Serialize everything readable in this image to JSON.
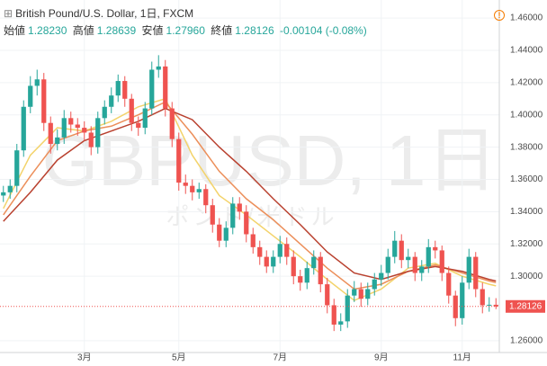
{
  "header": {
    "symbol": "British Pound/U.S. Dollar, 1日, FXCM",
    "ohlc": [
      {
        "label": "始値",
        "value": "1.28230"
      },
      {
        "label": "高値",
        "value": "1.28639"
      },
      {
        "label": "安値",
        "value": "1.27960"
      },
      {
        "label": "終値",
        "value": "1.28126"
      }
    ],
    "change": "-0.00104 (-0.08%)"
  },
  "chart_data": {
    "type": "candlestick",
    "watermark": "GBPUSD, 1日",
    "watermark_sub": "ポンド/米ドル",
    "categories": [
      null,
      null,
      null,
      null,
      null,
      null,
      null,
      null,
      null,
      null,
      null,
      null,
      "3月",
      null,
      null,
      null,
      null,
      null,
      null,
      null,
      null,
      null,
      null,
      null,
      null,
      null,
      "5月",
      null,
      null,
      null,
      null,
      null,
      null,
      null,
      null,
      null,
      null,
      null,
      null,
      null,
      null,
      "7月",
      null,
      null,
      null,
      null,
      null,
      null,
      null,
      null,
      null,
      null,
      null,
      null,
      null,
      null,
      "9月",
      null,
      null,
      null,
      null,
      null,
      null,
      null,
      null,
      null,
      null,
      null,
      "11月",
      null,
      null,
      null,
      null,
      null
    ],
    "open": [
      1.35,
      1.352,
      1.356,
      1.378,
      1.405,
      1.418,
      1.422,
      1.395,
      1.382,
      1.386,
      1.398,
      1.394,
      1.392,
      1.389,
      1.38,
      1.398,
      1.405,
      1.412,
      1.421,
      1.41,
      1.395,
      1.392,
      1.404,
      1.428,
      1.43,
      1.404,
      1.385,
      1.358,
      1.356,
      1.352,
      1.354,
      1.344,
      1.332,
      1.322,
      1.33,
      1.345,
      1.34,
      1.326,
      1.318,
      1.312,
      1.306,
      1.312,
      1.32,
      1.312,
      1.3,
      1.296,
      1.305,
      1.312,
      1.295,
      1.282,
      1.27,
      1.272,
      1.288,
      1.292,
      1.286,
      1.292,
      1.298,
      1.302,
      1.312,
      1.322,
      1.31,
      1.312,
      1.302,
      1.306,
      1.318,
      1.316,
      1.302,
      1.288,
      1.274,
      1.296,
      1.312,
      1.292,
      1.282,
      1.2823
    ],
    "high": [
      1.356,
      1.36,
      1.382,
      1.409,
      1.424,
      1.428,
      1.426,
      1.399,
      1.391,
      1.403,
      1.402,
      1.398,
      1.396,
      1.393,
      1.402,
      1.409,
      1.417,
      1.425,
      1.424,
      1.413,
      1.399,
      1.408,
      1.433,
      1.437,
      1.434,
      1.408,
      1.389,
      1.363,
      1.36,
      1.358,
      1.357,
      1.348,
      1.336,
      1.334,
      1.349,
      1.349,
      1.344,
      1.33,
      1.322,
      1.316,
      1.316,
      1.325,
      1.324,
      1.316,
      1.304,
      1.309,
      1.316,
      1.315,
      1.299,
      1.286,
      1.277,
      1.292,
      1.297,
      1.296,
      1.296,
      1.302,
      1.307,
      1.317,
      1.328,
      1.326,
      1.317,
      1.315,
      1.31,
      1.323,
      1.322,
      1.319,
      1.306,
      1.291,
      1.3,
      1.317,
      1.315,
      1.296,
      1.287,
      1.28639
    ],
    "low": [
      1.346,
      1.348,
      1.352,
      1.374,
      1.401,
      1.412,
      1.39,
      1.376,
      1.378,
      1.382,
      1.389,
      1.387,
      1.384,
      1.375,
      1.376,
      1.394,
      1.401,
      1.408,
      1.405,
      1.39,
      1.387,
      1.388,
      1.4,
      1.423,
      1.399,
      1.38,
      1.353,
      1.351,
      1.347,
      1.348,
      1.339,
      1.327,
      1.318,
      1.318,
      1.326,
      1.335,
      1.321,
      1.314,
      1.307,
      1.302,
      1.302,
      1.308,
      1.307,
      1.295,
      1.291,
      1.292,
      1.301,
      1.29,
      1.277,
      1.266,
      1.266,
      1.268,
      1.284,
      1.281,
      1.282,
      1.288,
      1.294,
      1.298,
      1.308,
      1.305,
      1.305,
      1.297,
      1.297,
      1.302,
      1.311,
      1.297,
      1.283,
      1.269,
      1.27,
      1.292,
      1.287,
      1.277,
      1.278,
      1.2796
    ],
    "close": [
      1.352,
      1.356,
      1.378,
      1.405,
      1.418,
      1.422,
      1.395,
      1.382,
      1.386,
      1.398,
      1.394,
      1.392,
      1.389,
      1.38,
      1.398,
      1.405,
      1.412,
      1.421,
      1.41,
      1.395,
      1.392,
      1.404,
      1.428,
      1.43,
      1.404,
      1.385,
      1.358,
      1.356,
      1.352,
      1.354,
      1.344,
      1.332,
      1.322,
      1.33,
      1.345,
      1.34,
      1.326,
      1.318,
      1.312,
      1.306,
      1.312,
      1.32,
      1.312,
      1.3,
      1.296,
      1.305,
      1.312,
      1.295,
      1.282,
      1.27,
      1.272,
      1.288,
      1.292,
      1.286,
      1.292,
      1.298,
      1.302,
      1.312,
      1.322,
      1.31,
      1.312,
      1.302,
      1.306,
      1.318,
      1.316,
      1.302,
      1.288,
      1.274,
      1.296,
      1.312,
      1.292,
      1.282,
      1.2823,
      1.28126
    ],
    "up_color": "#26a69a",
    "down_color": "#ef5350",
    "ribbon": [
      {
        "color": "#f3d36b",
        "x": [
          0,
          4,
          8,
          12,
          16,
          20,
          24,
          28,
          32,
          36,
          40,
          44,
          48,
          52,
          56,
          60,
          64,
          68,
          72,
          73
        ],
        "values": [
          1.342,
          1.375,
          1.392,
          1.39,
          1.396,
          1.405,
          1.41,
          1.375,
          1.35,
          1.338,
          1.325,
          1.312,
          1.298,
          1.285,
          1.292,
          1.305,
          1.308,
          1.3,
          1.295,
          1.294
        ]
      },
      {
        "color": "#ec8f5a",
        "x": [
          0,
          4,
          8,
          12,
          16,
          20,
          24,
          28,
          32,
          36,
          40,
          44,
          48,
          52,
          56,
          60,
          64,
          68,
          72,
          73
        ],
        "values": [
          1.338,
          1.362,
          1.384,
          1.39,
          1.393,
          1.4,
          1.408,
          1.388,
          1.365,
          1.348,
          1.335,
          1.32,
          1.305,
          1.292,
          1.295,
          1.303,
          1.307,
          1.302,
          1.297,
          1.296
        ]
      },
      {
        "color": "#b9412f",
        "x": [
          0,
          4,
          8,
          12,
          16,
          20,
          24,
          28,
          32,
          36,
          40,
          44,
          48,
          52,
          56,
          60,
          64,
          68,
          72,
          73
        ],
        "values": [
          1.334,
          1.352,
          1.372,
          1.384,
          1.39,
          1.396,
          1.404,
          1.397,
          1.38,
          1.365,
          1.348,
          1.332,
          1.315,
          1.302,
          1.298,
          1.303,
          1.306,
          1.303,
          1.298,
          1.297
        ]
      }
    ],
    "price_line": 1.28126,
    "price_line_color": "#ef5350",
    "ylim": [
      1.2527,
      1.4712
    ],
    "yticks": [
      {
        "value": 1.26,
        "label": "1.26000"
      },
      {
        "value": 1.3,
        "label": "1.30000"
      },
      {
        "value": 1.32,
        "label": "1.32000"
      },
      {
        "value": 1.34,
        "label": "1.34000"
      },
      {
        "value": 1.36,
        "label": "1.36000"
      },
      {
        "value": 1.38,
        "label": "1.38000"
      },
      {
        "value": 1.4,
        "label": "1.40000"
      },
      {
        "value": 1.42,
        "label": "1.42000"
      },
      {
        "value": 1.44,
        "label": "1.44000"
      },
      {
        "value": 1.46,
        "label": "1.46000"
      }
    ],
    "grid": true
  }
}
